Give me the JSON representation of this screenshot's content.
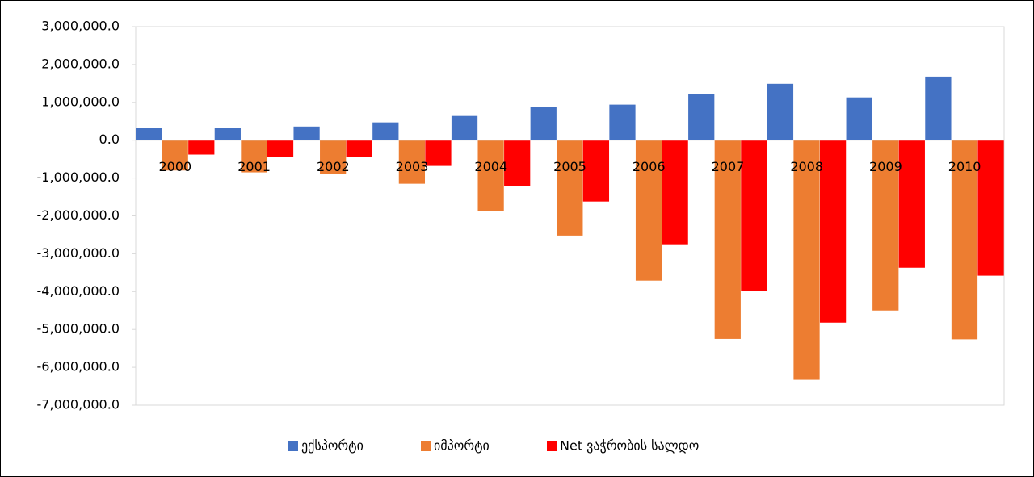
{
  "chart_data": {
    "type": "bar",
    "categories": [
      "2000",
      "2001",
      "2002",
      "2003",
      "2004",
      "2005",
      "2006",
      "2007",
      "2008",
      "2009",
      "2010"
    ],
    "series": [
      {
        "name": "ექსპორტი",
        "color": "#4472c4",
        "values": [
          320000,
          320000,
          360000,
          470000,
          640000,
          870000,
          940000,
          1230000,
          1490000,
          1130000,
          1680000
        ]
      },
      {
        "name": "იმპორტი",
        "color": "#ed7d31",
        "values": [
          -800000,
          -850000,
          -900000,
          -1150000,
          -1880000,
          -2520000,
          -3710000,
          -5250000,
          -6330000,
          -4500000,
          -5260000
        ]
      },
      {
        "name": "Net ვაჭრობის სალდო",
        "color": "#ff0000",
        "values": [
          -380000,
          -450000,
          -450000,
          -680000,
          -1220000,
          -1620000,
          -2750000,
          -3990000,
          -4820000,
          -3370000,
          -3580000
        ]
      }
    ],
    "ylim": [
      -7000000,
      3000000
    ],
    "yticks": [
      {
        "value": -7000000,
        "label": "-7,000,000.0"
      },
      {
        "value": -6000000,
        "label": "-6,000,000.0"
      },
      {
        "value": -5000000,
        "label": "-5,000,000.0"
      },
      {
        "value": -4000000,
        "label": "-4,000,000.0"
      },
      {
        "value": -3000000,
        "label": "-3,000,000.0"
      },
      {
        "value": -2000000,
        "label": "-2,000,000.0"
      },
      {
        "value": -1000000,
        "label": "-1,000,000.0"
      },
      {
        "value": 0,
        "label": "0.0"
      },
      {
        "value": 1000000,
        "label": "1,000,000.0"
      },
      {
        "value": 2000000,
        "label": "2,000,000.0"
      },
      {
        "value": 3000000,
        "label": "3,000,000.0"
      }
    ],
    "grid": false,
    "legend": "bottom"
  }
}
